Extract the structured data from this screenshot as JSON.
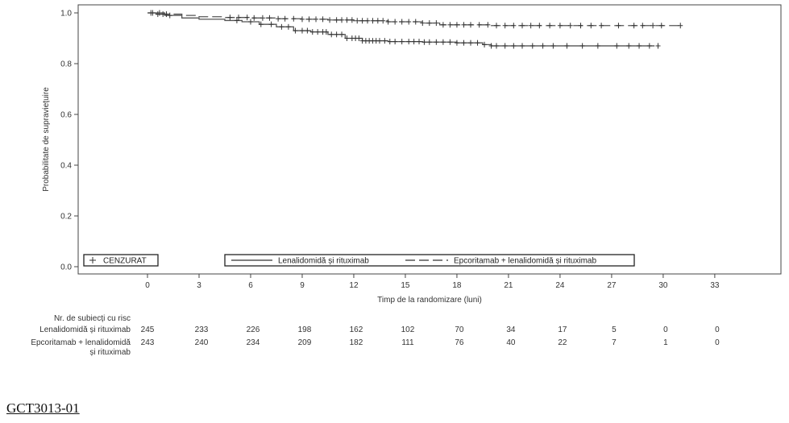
{
  "chart_data": {
    "type": "line",
    "title": "",
    "xlabel": "Timp de la randomizare (luni)",
    "ylabel": "Probabilitate de supraviețuire",
    "xlim": [
      -7,
      37.5
    ],
    "ylim": [
      0,
      1
    ],
    "x_ticks": [
      0,
      3,
      6,
      9,
      12,
      15,
      18,
      21,
      24,
      27,
      30,
      33
    ],
    "y_ticks": [
      0.0,
      0.2,
      0.4,
      0.6,
      0.8,
      1.0
    ],
    "y_tick_labels": [
      "0.0",
      "0.2",
      "0.4",
      "0.6",
      "0.8",
      "1.0"
    ],
    "grid": false,
    "legend_placement": "bottom",
    "censor_legend_label": "CENZURAT",
    "series": [
      {
        "name": "Lenalidomidă și rituximab",
        "style": "solid",
        "color": "#555555",
        "x": [
          0,
          0.5,
          1.0,
          2.0,
          3.0,
          4.5,
          5.5,
          6.5,
          7.5,
          8.5,
          9.5,
          10.5,
          11.5,
          12.5,
          14,
          16,
          18,
          19.5,
          20,
          24,
          27,
          29.5
        ],
        "y": [
          1.0,
          0.995,
          0.99,
          0.98,
          0.975,
          0.97,
          0.965,
          0.955,
          0.945,
          0.93,
          0.925,
          0.915,
          0.9,
          0.89,
          0.887,
          0.885,
          0.882,
          0.875,
          0.87,
          0.87,
          0.87,
          0.87
        ],
        "censor_times": [
          0.2,
          0.6,
          0.9,
          1.3,
          5.2,
          6.0,
          6.6,
          7.2,
          7.8,
          8.2,
          8.6,
          9.0,
          9.3,
          9.6,
          9.9,
          10.2,
          10.4,
          10.7,
          11.0,
          11.3,
          11.6,
          11.9,
          12.1,
          12.3,
          12.5,
          12.7,
          12.9,
          13.1,
          13.3,
          13.5,
          13.8,
          14.1,
          14.4,
          14.8,
          15.2,
          15.5,
          15.8,
          16.1,
          16.4,
          16.8,
          17.2,
          17.6,
          18.0,
          18.4,
          18.8,
          19.2,
          19.6,
          20.0,
          20.3,
          20.8,
          21.3,
          21.8,
          22.4,
          23.0,
          23.6,
          24.4,
          25.3,
          26.2,
          27.3,
          28.0,
          28.6,
          29.2,
          29.7
        ]
      },
      {
        "name": "Epcoritamab + lenalidomidă și rituximab",
        "style": "dashed",
        "color": "#555555",
        "x": [
          0,
          1.0,
          2.0,
          3.0,
          4.5,
          6.0,
          7.5,
          9.0,
          10.5,
          12.0,
          14.0,
          16.0,
          17.0,
          20.0,
          24.0,
          27.0,
          31.0
        ],
        "y": [
          1.0,
          0.995,
          0.99,
          0.985,
          0.982,
          0.98,
          0.977,
          0.975,
          0.972,
          0.969,
          0.965,
          0.96,
          0.953,
          0.95,
          0.95,
          0.95,
          0.95
        ],
        "censor_times": [
          0.3,
          0.7,
          1.1,
          4.8,
          5.3,
          5.8,
          6.2,
          6.7,
          7.1,
          7.6,
          8.0,
          8.5,
          9.0,
          9.4,
          9.8,
          10.2,
          10.6,
          11.0,
          11.3,
          11.6,
          11.9,
          12.2,
          12.5,
          12.8,
          13.1,
          13.4,
          13.7,
          14.0,
          14.4,
          14.8,
          15.2,
          15.6,
          16.0,
          16.4,
          16.8,
          17.2,
          17.6,
          18.0,
          18.4,
          18.8,
          19.3,
          19.8,
          20.3,
          20.8,
          21.3,
          21.8,
          22.3,
          22.8,
          23.4,
          24.0,
          24.6,
          25.2,
          25.8,
          26.4,
          27.4,
          28.3,
          28.8,
          29.4,
          29.9,
          31.0
        ]
      }
    ],
    "risk_table": {
      "title": "Nr. de subiecți cu risc",
      "rows": [
        {
          "label_lines": [
            "Lenalidomidă și rituximab"
          ],
          "values": [
            "245",
            "233",
            "226",
            "198",
            "162",
            "102",
            "70",
            "34",
            "17",
            "5",
            "0",
            "0"
          ]
        },
        {
          "label_lines": [
            "Epcoritamab + lenalidomidă",
            "și rituximab"
          ],
          "values": [
            "243",
            "240",
            "234",
            "209",
            "182",
            "111",
            "76",
            "40",
            "22",
            "7",
            "1",
            "0"
          ]
        }
      ]
    }
  },
  "footer": {
    "study_id": "GCT3013-01"
  }
}
